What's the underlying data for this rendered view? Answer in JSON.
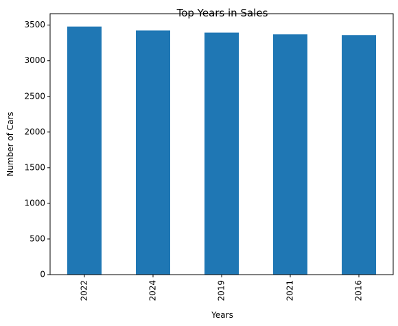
{
  "chart_data": {
    "type": "bar",
    "title": "Top Years in Sales",
    "xlabel": "Years",
    "ylabel": "Number of Cars",
    "categories": [
      "2022",
      "2024",
      "2019",
      "2021",
      "2016"
    ],
    "values": [
      3480,
      3425,
      3395,
      3370,
      3360
    ],
    "ylim": [
      0,
      3660
    ],
    "yticks": [
      0,
      500,
      1000,
      1500,
      2000,
      2500,
      3000,
      3500
    ],
    "bar_color": "#1f77b4",
    "grid": false,
    "legend": "none"
  }
}
